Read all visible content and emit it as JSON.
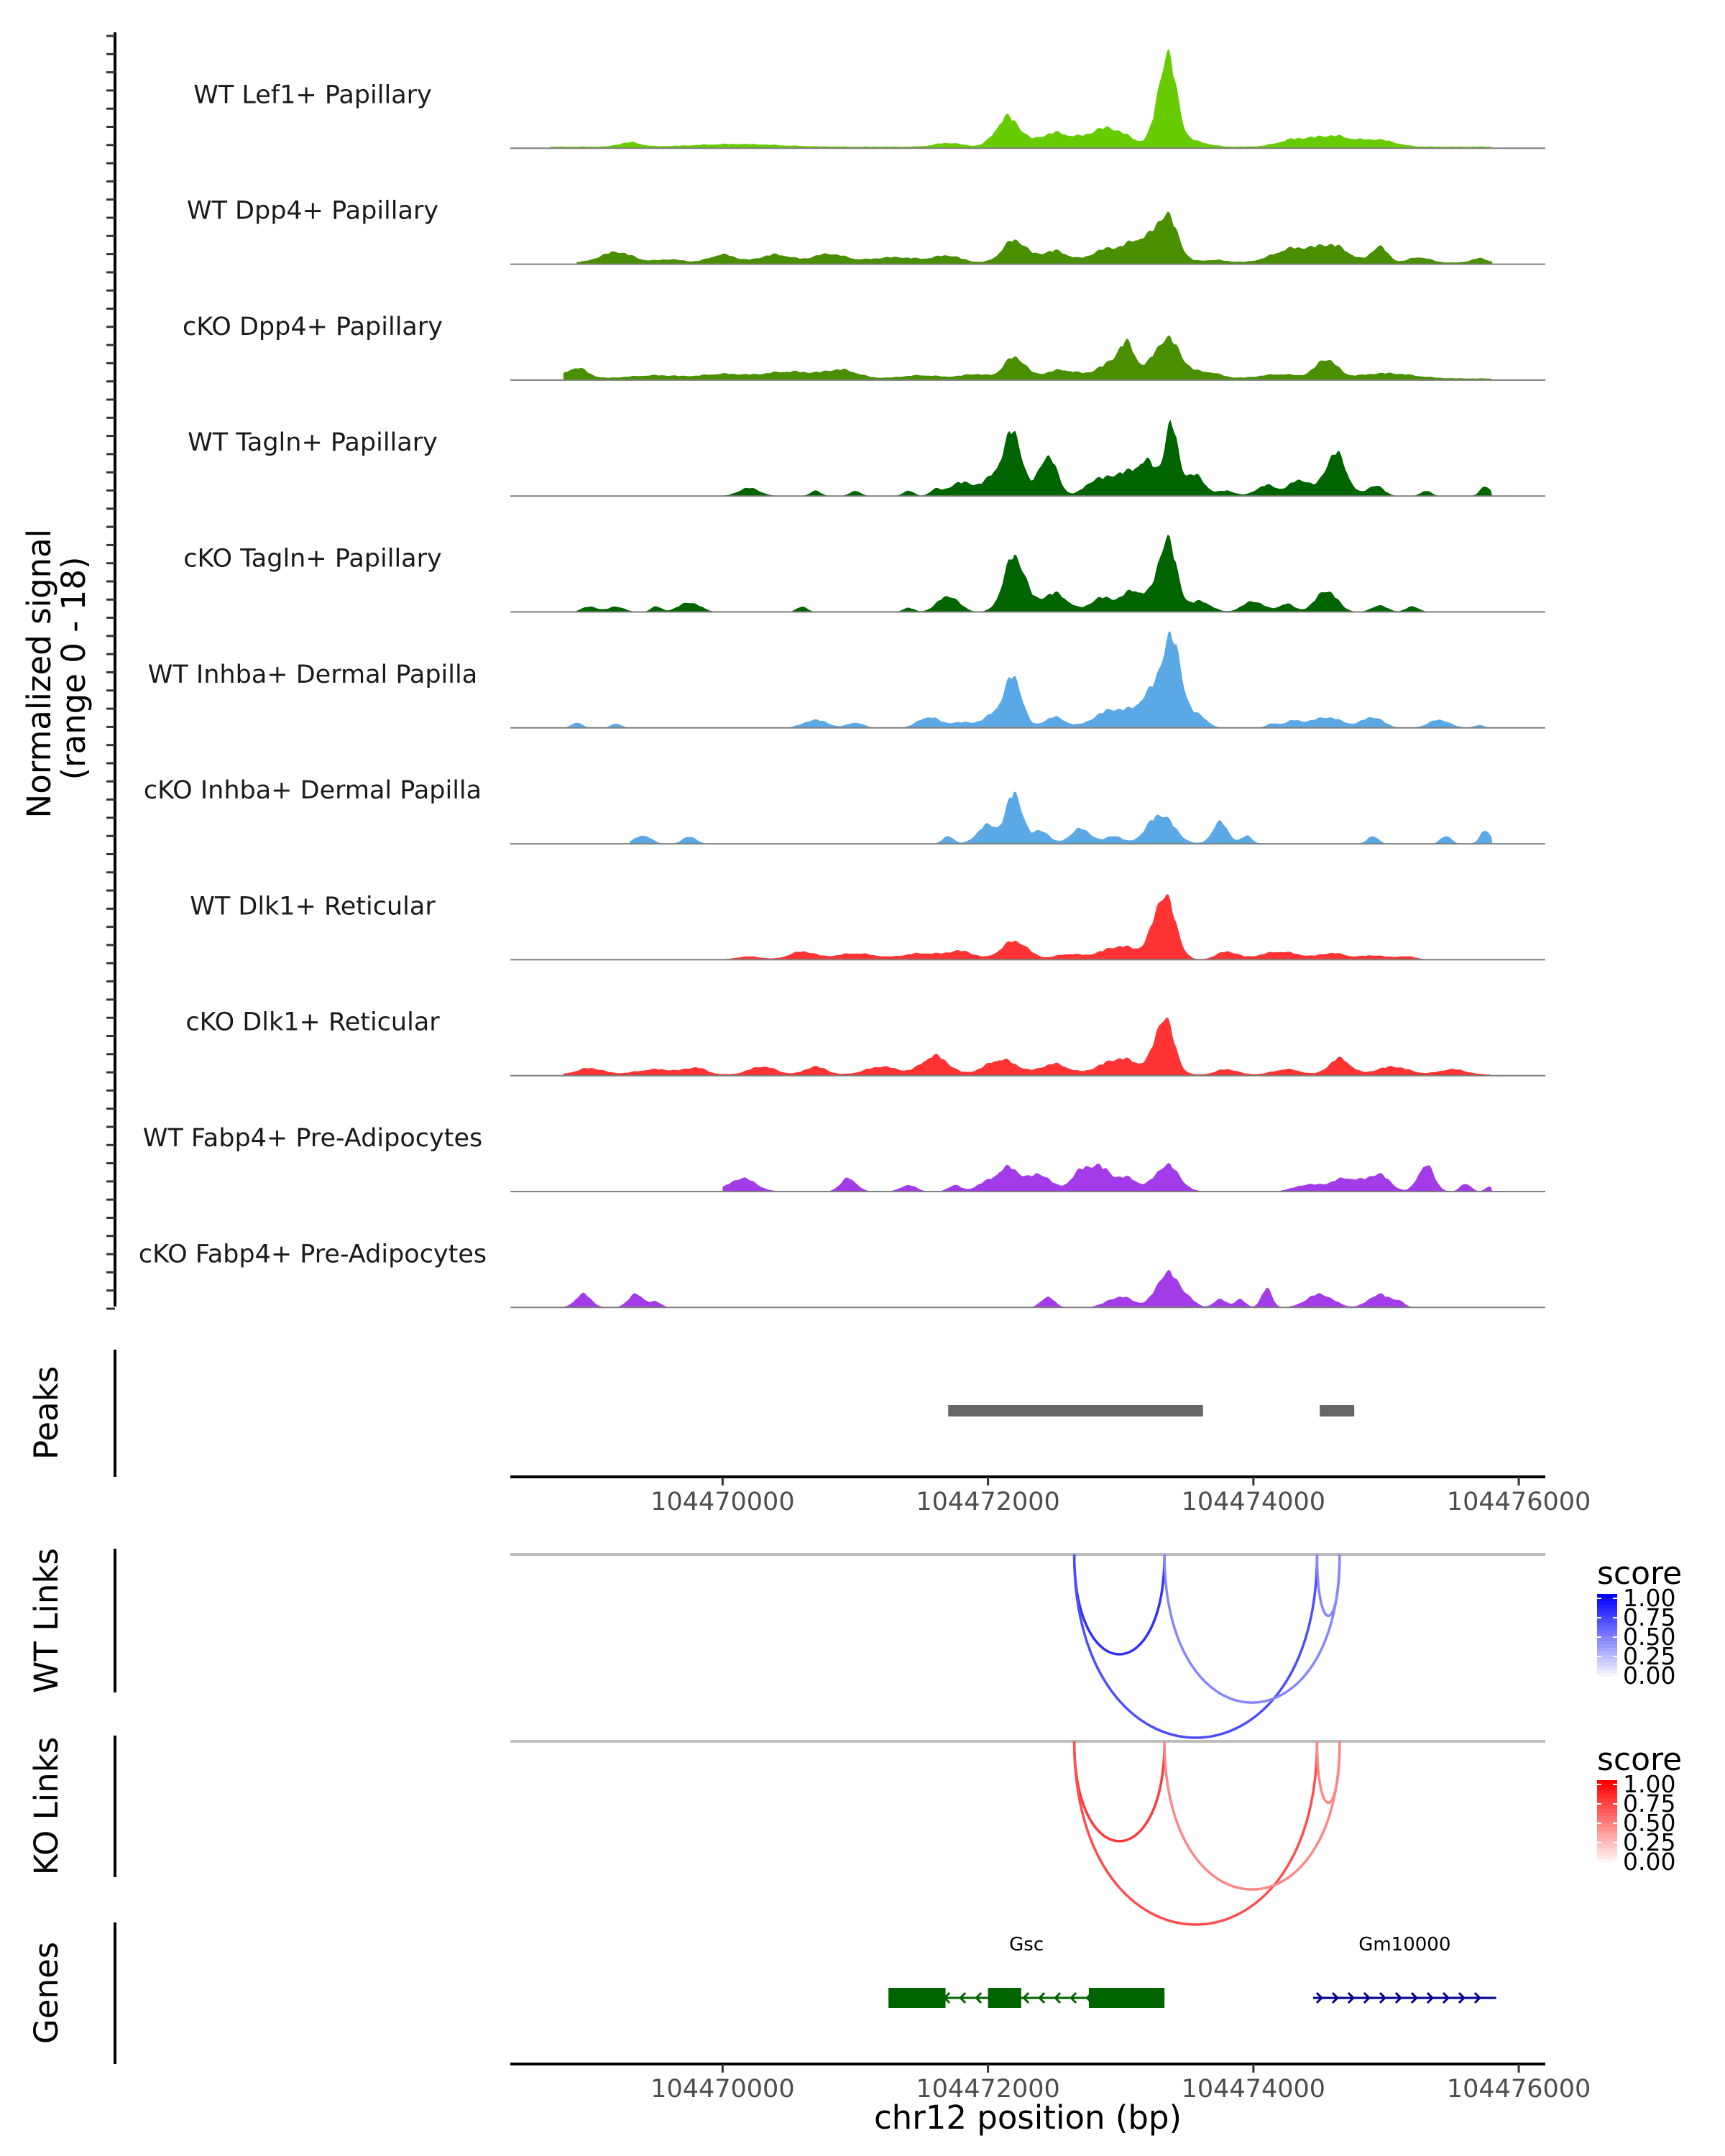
{
  "chart_data": {
    "type": "area",
    "region": "chr12",
    "xlim": [
      104468400,
      104476200
    ],
    "x_ticks": [
      104470000,
      104472000,
      104474000,
      104476000
    ],
    "x_tick_labels": [
      "104470000",
      "104472000",
      "104474000",
      "104476000"
    ],
    "xlabel": "chr12 position (bp)",
    "coverage_ylabel": "Normalized signal",
    "coverage_range_label": "(range 0 - 18)",
    "ylim": [
      0,
      18
    ],
    "tracks": [
      {
        "name": "WT Lef1+ Papillary",
        "color": "#66cc00",
        "base": 0.3,
        "start": 104468700,
        "end": 104475800,
        "peaks": [
          [
            104469300,
            0.8,
            80
          ],
          [
            104470100,
            0.5,
            300
          ],
          [
            104471700,
            0.7,
            100
          ],
          [
            104472150,
            5.5,
            90
          ],
          [
            104472500,
            2.5,
            120
          ],
          [
            104472900,
            3.5,
            150
          ],
          [
            104473350,
            17.0,
            70
          ],
          [
            104473550,
            1.0,
            100
          ],
          [
            104474300,
            1.2,
            120
          ],
          [
            104474600,
            2.0,
            150
          ],
          [
            104474950,
            1.2,
            120
          ]
        ]
      },
      {
        "name": "WT Dpp4+ Papillary",
        "color": "#4a8f00",
        "base": 0.3,
        "start": 104468900,
        "end": 104475800,
        "peaks": [
          [
            104469200,
            2.0,
            120
          ],
          [
            104469600,
            0.6,
            100
          ],
          [
            104470000,
            1.5,
            100
          ],
          [
            104470400,
            1.5,
            120
          ],
          [
            104470800,
            1.6,
            120
          ],
          [
            104471300,
            1.0,
            200
          ],
          [
            104471700,
            1.2,
            100
          ],
          [
            104472200,
            4.2,
            90
          ],
          [
            104472500,
            2.2,
            100
          ],
          [
            104472900,
            2.5,
            120
          ],
          [
            104473150,
            4.0,
            100
          ],
          [
            104473350,
            8.5,
            80
          ],
          [
            104473700,
            0.5,
            100
          ],
          [
            104474300,
            2.6,
            150
          ],
          [
            104474600,
            3.0,
            120
          ],
          [
            104474950,
            3.0,
            60
          ],
          [
            104475250,
            1.0,
            80
          ],
          [
            104475700,
            0.8,
            60
          ]
        ]
      },
      {
        "name": "cKO Dpp4+ Papillary",
        "color": "#4a8f00",
        "base": 0.3,
        "start": 104468800,
        "end": 104475800,
        "peaks": [
          [
            104468900,
            2.0,
            80
          ],
          [
            104469500,
            0.6,
            200
          ],
          [
            104470000,
            0.8,
            150
          ],
          [
            104470500,
            1.3,
            200
          ],
          [
            104470900,
            1.5,
            120
          ],
          [
            104471500,
            0.6,
            150
          ],
          [
            104471900,
            0.8,
            100
          ],
          [
            104472200,
            4.0,
            80
          ],
          [
            104472550,
            1.6,
            120
          ],
          [
            104472950,
            3.0,
            120
          ],
          [
            104473050,
            4.5,
            60
          ],
          [
            104473350,
            7.5,
            100
          ],
          [
            104473650,
            1.2,
            100
          ],
          [
            104474200,
            0.8,
            150
          ],
          [
            104474550,
            3.5,
            80
          ],
          [
            104475000,
            1.0,
            200
          ]
        ]
      },
      {
        "name": "WT Tagln+ Papillary",
        "color": "#006400",
        "base": 0.0,
        "start": 104470000,
        "end": 104475800,
        "peaks": [
          [
            104470200,
            1.5,
            80
          ],
          [
            104470700,
            1.0,
            40
          ],
          [
            104471000,
            1.0,
            40
          ],
          [
            104471400,
            1.0,
            40
          ],
          [
            104471600,
            1.0,
            40
          ],
          [
            104471800,
            2.5,
            100
          ],
          [
            104472100,
            5.0,
            100
          ],
          [
            104472200,
            9.0,
            60
          ],
          [
            104472450,
            7.5,
            70
          ],
          [
            104472800,
            2.5,
            80
          ],
          [
            104473000,
            4.0,
            100
          ],
          [
            104473200,
            6.0,
            80
          ],
          [
            104473380,
            12.5,
            50
          ],
          [
            104473550,
            4.0,
            80
          ],
          [
            104473800,
            1.0,
            60
          ],
          [
            104474100,
            2.0,
            80
          ],
          [
            104474350,
            3.0,
            80
          ],
          [
            104474620,
            8.0,
            80
          ],
          [
            104474920,
            2.0,
            60
          ],
          [
            104475300,
            1.0,
            40
          ],
          [
            104475750,
            1.8,
            40
          ]
        ]
      },
      {
        "name": "cKO Tagln+ Papillary",
        "color": "#006400",
        "base": 0.0,
        "start": 104468900,
        "end": 104475300,
        "peaks": [
          [
            104469000,
            1.0,
            60
          ],
          [
            104469200,
            1.0,
            60
          ],
          [
            104469500,
            1.0,
            40
          ],
          [
            104469750,
            1.8,
            80
          ],
          [
            104470600,
            1.0,
            40
          ],
          [
            104471400,
            0.8,
            40
          ],
          [
            104471700,
            3.0,
            80
          ],
          [
            104472200,
            10.5,
            80
          ],
          [
            104472500,
            3.5,
            100
          ],
          [
            104472850,
            2.5,
            80
          ],
          [
            104473100,
            4.0,
            100
          ],
          [
            104473350,
            13.5,
            70
          ],
          [
            104473600,
            2.0,
            80
          ],
          [
            104474000,
            2.0,
            80
          ],
          [
            104474250,
            1.5,
            60
          ],
          [
            104474550,
            4.0,
            80
          ],
          [
            104474950,
            1.2,
            60
          ],
          [
            104475200,
            1.0,
            50
          ]
        ]
      },
      {
        "name": "WT Inhba+ Dermal Papilla",
        "color": "#5ba8e6",
        "base": 0.0,
        "start": 104468800,
        "end": 104475800,
        "peaks": [
          [
            104468900,
            1.0,
            40
          ],
          [
            104469200,
            0.8,
            40
          ],
          [
            104470700,
            1.5,
            90
          ],
          [
            104471000,
            1.0,
            60
          ],
          [
            104471550,
            2.0,
            80
          ],
          [
            104471800,
            1.0,
            100
          ],
          [
            104472100,
            3.5,
            100
          ],
          [
            104472200,
            7.5,
            60
          ],
          [
            104472500,
            2.0,
            80
          ],
          [
            104472950,
            3.5,
            140
          ],
          [
            104473200,
            4.5,
            80
          ],
          [
            104473380,
            16.5,
            80
          ],
          [
            104473600,
            2.0,
            60
          ],
          [
            104474150,
            0.8,
            50
          ],
          [
            104474300,
            1.2,
            60
          ],
          [
            104474550,
            2.0,
            120
          ],
          [
            104474900,
            2.0,
            80
          ],
          [
            104475400,
            1.5,
            80
          ],
          [
            104475700,
            0.5,
            40
          ]
        ]
      },
      {
        "name": "cKO Inhba+ Dermal Papilla",
        "color": "#5ba8e6",
        "base": 0.0,
        "start": 104469300,
        "end": 104475800,
        "peaks": [
          [
            104469400,
            1.6,
            60
          ],
          [
            104469750,
            1.4,
            50
          ],
          [
            104471700,
            1.5,
            40
          ],
          [
            104472000,
            3.5,
            80
          ],
          [
            104472200,
            9.5,
            60
          ],
          [
            104472400,
            2.5,
            60
          ],
          [
            104472700,
            2.8,
            80
          ],
          [
            104472950,
            1.5,
            60
          ],
          [
            104473300,
            5.5,
            100
          ],
          [
            104473750,
            4.0,
            60
          ],
          [
            104473950,
            1.5,
            40
          ],
          [
            104474900,
            1.5,
            40
          ],
          [
            104475450,
            1.5,
            40
          ],
          [
            104475750,
            2.5,
            40
          ]
        ]
      },
      {
        "name": "WT Dlk1+ Reticular",
        "color": "#ff3333",
        "base": 0.0,
        "start": 104470000,
        "end": 104475300,
        "peaks": [
          [
            104470200,
            0.6,
            100
          ],
          [
            104470600,
            1.5,
            100
          ],
          [
            104471000,
            1.2,
            150
          ],
          [
            104471500,
            1.2,
            150
          ],
          [
            104471800,
            1.5,
            100
          ],
          [
            104472200,
            3.5,
            100
          ],
          [
            104472600,
            1.0,
            100
          ],
          [
            104473000,
            2.5,
            150
          ],
          [
            104473330,
            12.0,
            80
          ],
          [
            104473800,
            1.5,
            80
          ],
          [
            104474200,
            1.5,
            150
          ],
          [
            104474600,
            1.2,
            100
          ],
          [
            104474900,
            0.8,
            100
          ],
          [
            104475150,
            0.6,
            80
          ]
        ]
      },
      {
        "name": "cKO Dlk1+ Reticular",
        "color": "#ff3333",
        "base": 0.2,
        "start": 104468800,
        "end": 104475800,
        "peaks": [
          [
            104469000,
            1.2,
            100
          ],
          [
            104469500,
            1.0,
            150
          ],
          [
            104469800,
            1.2,
            80
          ],
          [
            104470300,
            1.5,
            100
          ],
          [
            104470700,
            1.5,
            80
          ],
          [
            104471200,
            1.5,
            120
          ],
          [
            104471600,
            3.5,
            100
          ],
          [
            104472100,
            2.8,
            120
          ],
          [
            104472500,
            2.0,
            100
          ],
          [
            104473000,
            3.0,
            150
          ],
          [
            104473330,
            10.5,
            70
          ],
          [
            104473800,
            1.0,
            80
          ],
          [
            104474250,
            1.0,
            100
          ],
          [
            104474650,
            3.0,
            80
          ],
          [
            104475050,
            1.5,
            120
          ],
          [
            104475500,
            1.0,
            100
          ]
        ]
      },
      {
        "name": "WT Fabp4+ Pre-Adipocytes",
        "color": "#a43be8",
        "base": 0.0,
        "start": 104470000,
        "end": 104475800,
        "peaks": [
          [
            104470150,
            2.5,
            100
          ],
          [
            104470950,
            2.5,
            60
          ],
          [
            104471400,
            1.2,
            60
          ],
          [
            104471750,
            1.2,
            50
          ],
          [
            104471950,
            1.0,
            60
          ],
          [
            104472150,
            4.5,
            100
          ],
          [
            104472400,
            3.0,
            80
          ],
          [
            104472700,
            3.5,
            80
          ],
          [
            104472850,
            4.0,
            80
          ],
          [
            104473050,
            2.5,
            80
          ],
          [
            104473350,
            5.0,
            90
          ],
          [
            104474400,
            1.2,
            100
          ],
          [
            104474700,
            2.5,
            120
          ],
          [
            104474950,
            3.0,
            80
          ],
          [
            104475300,
            5.0,
            60
          ],
          [
            104475600,
            1.5,
            40
          ],
          [
            104475780,
            1.0,
            30
          ]
        ]
      },
      {
        "name": "cKO Fabp4+ Pre-Adipocytes",
        "color": "#a43be8",
        "base": 0.0,
        "start": 104468800,
        "end": 104475200,
        "peaks": [
          [
            104468950,
            2.5,
            60
          ],
          [
            104469350,
            2.5,
            60
          ],
          [
            104469500,
            1.0,
            40
          ],
          [
            104472450,
            2.0,
            50
          ],
          [
            104473000,
            2.0,
            100
          ],
          [
            104473350,
            6.5,
            80
          ],
          [
            104473500,
            1.5,
            60
          ],
          [
            104473750,
            1.5,
            50
          ],
          [
            104473900,
            1.5,
            40
          ],
          [
            104474100,
            3.5,
            40
          ],
          [
            104474500,
            2.5,
            100
          ],
          [
            104474950,
            2.5,
            80
          ],
          [
            104475100,
            1.0,
            40
          ]
        ]
      }
    ],
    "peaks_track": {
      "label": "Peaks",
      "color": "#666666",
      "regions": [
        [
          104471700,
          104473620
        ],
        [
          104474500,
          104474760
        ]
      ]
    },
    "links_tracks": [
      {
        "label": "WT Links",
        "legend_title": "score",
        "low_color": "#ffffff",
        "high_color": "#0000ff",
        "legend_ticks": [
          "1.00",
          "0.75",
          "0.50",
          "0.25",
          "0.00"
        ],
        "links": [
          {
            "start": 104472650,
            "end": 104473330,
            "score": 0.75
          },
          {
            "start": 104472650,
            "end": 104474480,
            "score": 0.6
          },
          {
            "start": 104473330,
            "end": 104474650,
            "score": 0.3
          },
          {
            "start": 104474480,
            "end": 104474650,
            "score": 0.3
          }
        ]
      },
      {
        "label": "KO Links",
        "legend_title": "score",
        "low_color": "#ffffff",
        "high_color": "#ff0000",
        "legend_ticks": [
          "1.00",
          "0.75",
          "0.50",
          "0.25",
          "0.00"
        ],
        "links": [
          {
            "start": 104472650,
            "end": 104473330,
            "score": 0.7
          },
          {
            "start": 104472650,
            "end": 104474480,
            "score": 0.6
          },
          {
            "start": 104473330,
            "end": 104474650,
            "score": 0.3
          },
          {
            "start": 104474480,
            "end": 104474650,
            "score": 0.3
          }
        ]
      }
    ],
    "genes_track": {
      "label": "Genes",
      "genes": [
        {
          "name": "Gsc",
          "start": 104471250,
          "end": 104473330,
          "strand": "-",
          "color": "#006400",
          "exons": [
            [
              104471250,
              104471680
            ],
            [
              104472000,
              104472250
            ],
            [
              104472760,
              104473330
            ]
          ]
        },
        {
          "name": "Gm10000",
          "start": 104474450,
          "end": 104475830,
          "strand": "+",
          "color": "#00008b",
          "exons": []
        }
      ]
    }
  }
}
